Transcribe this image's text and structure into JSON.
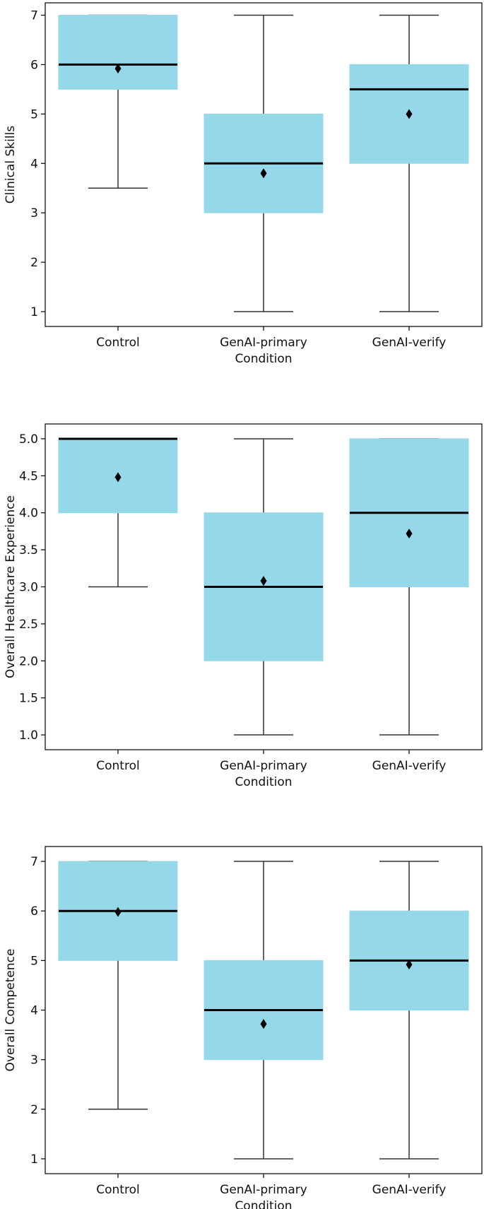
{
  "chart_data": [
    {
      "type": "box",
      "xlabel": "Condition",
      "ylabel": "Clinical Skills",
      "categories": [
        "Control",
        "GenAI-primary",
        "GenAI-verify"
      ],
      "ylim": [
        0.7,
        7.25
      ],
      "yticks": [
        1,
        2,
        3,
        4,
        5,
        6,
        7
      ],
      "tick_format": "int",
      "boxes": [
        {
          "category": "Control",
          "whisker_low": 3.5,
          "q1": 5.5,
          "median": 6.0,
          "q3": 7.0,
          "whisker_high": 7.0,
          "mean": 5.92
        },
        {
          "category": "GenAI-primary",
          "whisker_low": 1.0,
          "q1": 3.0,
          "median": 4.0,
          "q3": 5.0,
          "whisker_high": 7.0,
          "mean": 3.8
        },
        {
          "category": "GenAI-verify",
          "whisker_low": 1.0,
          "q1": 4.0,
          "median": 5.5,
          "q3": 6.0,
          "whisker_high": 7.0,
          "mean": 5.0
        }
      ]
    },
    {
      "type": "box",
      "xlabel": "Condition",
      "ylabel": "Overall Healthcare Experience",
      "categories": [
        "Control",
        "GenAI-primary",
        "GenAI-verify"
      ],
      "ylim": [
        0.8,
        5.2
      ],
      "yticks": [
        1.0,
        1.5,
        2.0,
        2.5,
        3.0,
        3.5,
        4.0,
        4.5,
        5.0
      ],
      "tick_format": "1dp",
      "boxes": [
        {
          "category": "Control",
          "whisker_low": 3.0,
          "q1": 4.0,
          "median": 5.0,
          "q3": 5.0,
          "whisker_high": 5.0,
          "mean": 4.48
        },
        {
          "category": "GenAI-primary",
          "whisker_low": 1.0,
          "q1": 2.0,
          "median": 3.0,
          "q3": 4.0,
          "whisker_high": 5.0,
          "mean": 3.08
        },
        {
          "category": "GenAI-verify",
          "whisker_low": 1.0,
          "q1": 3.0,
          "median": 4.0,
          "q3": 5.0,
          "whisker_high": 5.0,
          "mean": 3.72
        }
      ]
    },
    {
      "type": "box",
      "xlabel": "Condition",
      "ylabel": "Overall Competence",
      "categories": [
        "Control",
        "GenAI-primary",
        "GenAI-verify"
      ],
      "ylim": [
        0.7,
        7.3
      ],
      "yticks": [
        1,
        2,
        3,
        4,
        5,
        6,
        7
      ],
      "tick_format": "int",
      "boxes": [
        {
          "category": "Control",
          "whisker_low": 2.0,
          "q1": 5.0,
          "median": 6.0,
          "q3": 7.0,
          "whisker_high": 7.0,
          "mean": 5.98
        },
        {
          "category": "GenAI-primary",
          "whisker_low": 1.0,
          "q1": 3.0,
          "median": 4.0,
          "q3": 5.0,
          "whisker_high": 7.0,
          "mean": 3.72
        },
        {
          "category": "GenAI-verify",
          "whisker_low": 1.0,
          "q1": 4.0,
          "median": 5.0,
          "q3": 6.0,
          "whisker_high": 7.0,
          "mean": 4.92
        }
      ]
    }
  ],
  "colors": {
    "box_fill": "#95d8ea",
    "median": "#000000",
    "whisker": "#333333",
    "mean_marker": "#000000",
    "axes": "#000000"
  }
}
